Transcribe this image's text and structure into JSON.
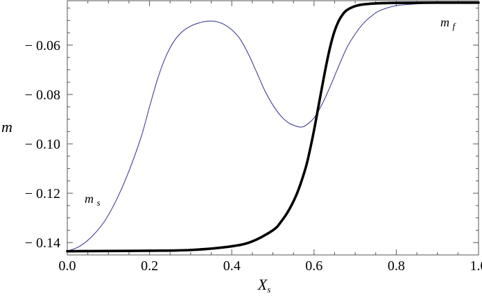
{
  "chart_data": {
    "type": "line",
    "title": "",
    "xlabel_main": "X",
    "xlabel_sub": "s",
    "ylabel": "m",
    "xlim": [
      0.0,
      1.0
    ],
    "ylim": [
      -0.145,
      -0.042
    ],
    "x_ticks": [
      0.0,
      0.2,
      0.4,
      0.6,
      0.8,
      1.0
    ],
    "x_tick_labels": [
      "0.0",
      "0.2",
      "0.4",
      "0.6",
      "0.8",
      "1.0"
    ],
    "y_ticks": [
      -0.14,
      -0.12,
      -0.1,
      -0.08,
      -0.06
    ],
    "y_tick_labels": [
      "− 0.14",
      "− 0.12",
      "− 0.10",
      "− 0.08",
      "− 0.06"
    ],
    "grid": false,
    "series": [
      {
        "label_main": "m",
        "label_sub": "s",
        "color": "#2e2e8f",
        "line_width": "thin",
        "x": [
          0.0,
          0.03,
          0.06,
          0.09,
          0.12,
          0.15,
          0.18,
          0.2,
          0.22,
          0.24,
          0.26,
          0.28,
          0.3,
          0.32,
          0.34,
          0.36,
          0.38,
          0.4,
          0.42,
          0.44,
          0.46,
          0.48,
          0.5,
          0.52,
          0.54,
          0.56,
          0.57,
          0.58,
          0.6,
          0.62,
          0.64,
          0.66,
          0.68,
          0.7,
          0.72,
          0.74,
          0.76,
          0.8,
          0.85,
          0.9,
          0.95,
          1.0
        ],
        "y": [
          -0.1435,
          -0.1415,
          -0.1375,
          -0.1315,
          -0.1225,
          -0.111,
          -0.097,
          -0.085,
          -0.0735,
          -0.0645,
          -0.0583,
          -0.0545,
          -0.0523,
          -0.051,
          -0.0503,
          -0.0504,
          -0.0515,
          -0.0538,
          -0.0575,
          -0.0635,
          -0.0708,
          -0.0783,
          -0.0843,
          -0.0888,
          -0.0917,
          -0.093,
          -0.0932,
          -0.0925,
          -0.0895,
          -0.0838,
          -0.0765,
          -0.0685,
          -0.061,
          -0.0555,
          -0.0512,
          -0.0482,
          -0.046,
          -0.044,
          -0.0433,
          -0.043,
          -0.0429,
          -0.0428
        ]
      },
      {
        "label_main": "m",
        "label_sub": "f",
        "color": "#000000",
        "line_width": "thick",
        "x": [
          0.0,
          0.1,
          0.2,
          0.3,
          0.4,
          0.45,
          0.5,
          0.52,
          0.54,
          0.56,
          0.58,
          0.59,
          0.6,
          0.61,
          0.62,
          0.63,
          0.64,
          0.65,
          0.66,
          0.67,
          0.68,
          0.7,
          0.72,
          0.75,
          0.8,
          0.9,
          1.0
        ],
        "y": [
          -0.1435,
          -0.1434,
          -0.1433,
          -0.143,
          -0.1415,
          -0.1395,
          -0.135,
          -0.1315,
          -0.1265,
          -0.1195,
          -0.1095,
          -0.1025,
          -0.0945,
          -0.0855,
          -0.0765,
          -0.0678,
          -0.0602,
          -0.0543,
          -0.0502,
          -0.0475,
          -0.0458,
          -0.0442,
          -0.0435,
          -0.0431,
          -0.0429,
          -0.0428,
          -0.0428
        ]
      }
    ]
  }
}
